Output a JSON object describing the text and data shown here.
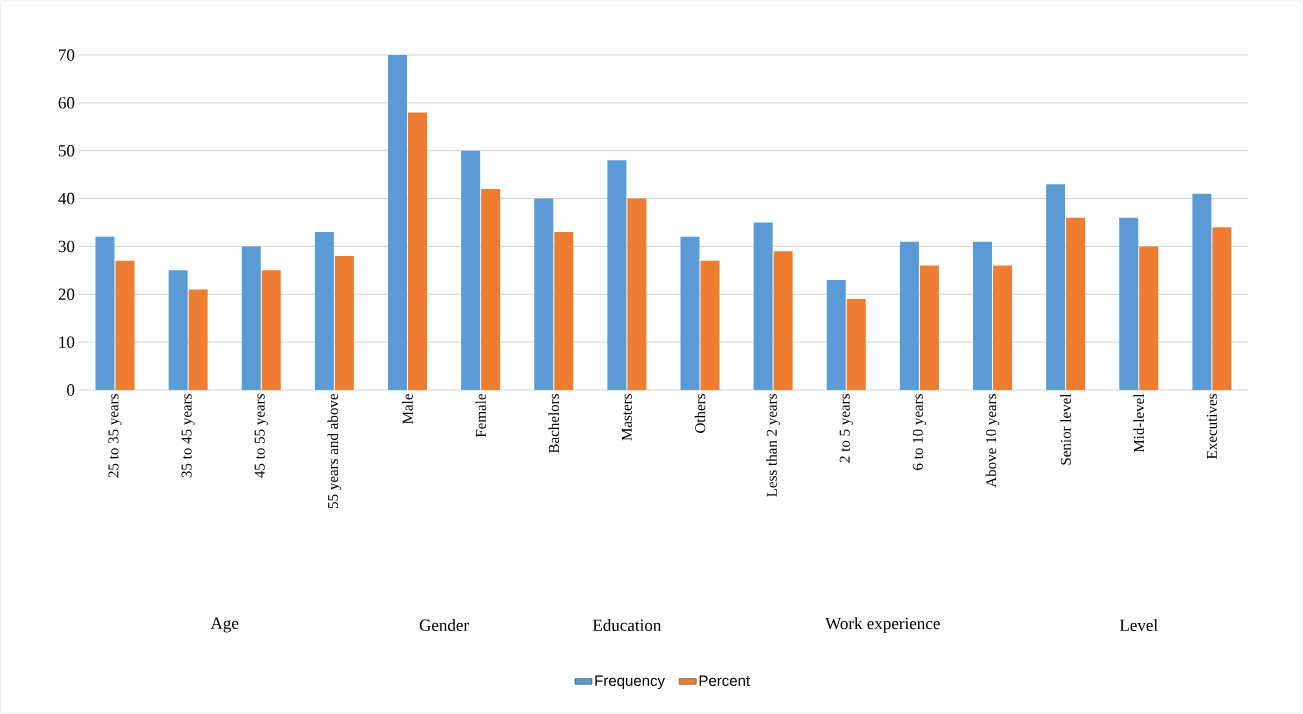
{
  "chart_data": {
    "type": "bar",
    "categories": [
      "25 to 35 years",
      "35 to 45 years",
      "45 to 55 years",
      "55 years and above",
      "Male",
      "Female",
      "Bachelors",
      "Masters",
      "Others",
      "Less than 2 years",
      "2 to 5 years",
      "6 to 10 years",
      "Above 10 years",
      "Senior level",
      "Mid-level",
      "Executives"
    ],
    "series": [
      {
        "name": "Frequency",
        "color": "#5b9bd5",
        "values": [
          32,
          25,
          30,
          33,
          70,
          50,
          40,
          48,
          32,
          35,
          23,
          31,
          31,
          43,
          36,
          41
        ]
      },
      {
        "name": "Percent",
        "color": "#ed7d31",
        "values": [
          27,
          21,
          25,
          28,
          58,
          42,
          33,
          40,
          27,
          29,
          19,
          26,
          26,
          36,
          30,
          34
        ]
      }
    ],
    "annotations": [
      "Age",
      "Gender",
      "Education",
      "Work experience",
      "Level"
    ],
    "ylim": [
      0,
      70
    ],
    "yticks": [
      0,
      10,
      20,
      30,
      40,
      50,
      60,
      70
    ],
    "grid": "y",
    "legend": "bottom"
  }
}
